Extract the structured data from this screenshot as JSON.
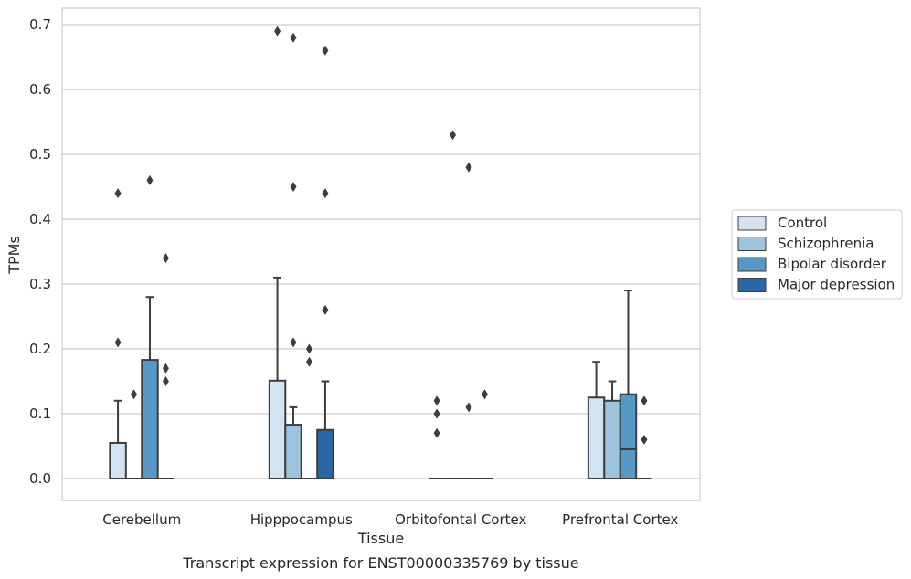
{
  "caption": "Transcript expression for ENST00000335769 by tissue",
  "chart_data": {
    "type": "boxplot",
    "xlabel": "Tissue",
    "ylabel": "TPMs",
    "ylim": [
      -0.035,
      0.725
    ],
    "yticks": [
      0.0,
      0.1,
      0.2,
      0.3,
      0.4,
      0.5,
      0.6,
      0.7
    ],
    "ytick_labels": [
      "0.0",
      "0.1",
      "0.2",
      "0.3",
      "0.4",
      "0.5",
      "0.6",
      "0.7"
    ],
    "grid": "horizontal",
    "legend_position": "right",
    "categories": [
      "Cerebellum",
      "Hipppocampus",
      "Orbitofontal Cortex",
      "Prefrontal Cortex"
    ],
    "series": [
      {
        "name": "Control",
        "color": "#d4e3f1",
        "boxes": [
          {
            "q1": 0.0,
            "median": 0.0,
            "q3": 0.055,
            "whisker_low": 0.0,
            "whisker_high": 0.12,
            "outliers": [
              0.44,
              0.21
            ]
          },
          {
            "q1": 0.0,
            "median": 0.0,
            "q3": 0.151,
            "whisker_low": 0.0,
            "whisker_high": 0.31,
            "outliers": [
              0.69
            ]
          },
          {
            "q1": 0.0,
            "median": 0.0,
            "q3": 0.0,
            "whisker_low": 0.0,
            "whisker_high": 0.0,
            "outliers": [
              0.12,
              0.1,
              0.07
            ]
          },
          {
            "q1": 0.0,
            "median": 0.0,
            "q3": 0.125,
            "whisker_low": 0.0,
            "whisker_high": 0.18,
            "outliers": []
          }
        ]
      },
      {
        "name": "Schizophrenia",
        "color": "#9dc4dd",
        "boxes": [
          {
            "q1": 0.0,
            "median": 0.0,
            "q3": 0.0,
            "whisker_low": 0.0,
            "whisker_high": 0.0,
            "outliers": [
              0.13
            ]
          },
          {
            "q1": 0.0,
            "median": 0.0,
            "q3": 0.083,
            "whisker_low": 0.0,
            "whisker_high": 0.11,
            "outliers": [
              0.68,
              0.45,
              0.21
            ]
          },
          {
            "q1": 0.0,
            "median": 0.0,
            "q3": 0.0,
            "whisker_low": 0.0,
            "whisker_high": 0.0,
            "outliers": [
              0.53
            ]
          },
          {
            "q1": 0.0,
            "median": 0.0,
            "q3": 0.12,
            "whisker_low": 0.0,
            "whisker_high": 0.15,
            "outliers": []
          }
        ]
      },
      {
        "name": "Bipolar disorder",
        "color": "#5698c6",
        "boxes": [
          {
            "q1": 0.0,
            "median": 0.0,
            "q3": 0.183,
            "whisker_low": 0.0,
            "whisker_high": 0.28,
            "outliers": [
              0.46
            ]
          },
          {
            "q1": 0.0,
            "median": 0.0,
            "q3": 0.0,
            "whisker_low": 0.0,
            "whisker_high": 0.0,
            "outliers": [
              0.2,
              0.18
            ]
          },
          {
            "q1": 0.0,
            "median": 0.0,
            "q3": 0.0,
            "whisker_low": 0.0,
            "whisker_high": 0.0,
            "outliers": [
              0.48,
              0.11
            ]
          },
          {
            "q1": 0.0,
            "median": 0.045,
            "q3": 0.13,
            "whisker_low": 0.0,
            "whisker_high": 0.29,
            "outliers": []
          }
        ]
      },
      {
        "name": "Major depression",
        "color": "#2a67a6",
        "boxes": [
          {
            "q1": 0.0,
            "median": 0.0,
            "q3": 0.0,
            "whisker_low": 0.0,
            "whisker_high": 0.0,
            "outliers": [
              0.34,
              0.17,
              0.15
            ]
          },
          {
            "q1": 0.0,
            "median": 0.0,
            "q3": 0.075,
            "whisker_low": 0.0,
            "whisker_high": 0.15,
            "outliers": [
              0.66,
              0.44,
              0.26
            ]
          },
          {
            "q1": 0.0,
            "median": 0.0,
            "q3": 0.0,
            "whisker_low": 0.0,
            "whisker_high": 0.0,
            "outliers": [
              0.13
            ]
          },
          {
            "q1": 0.0,
            "median": 0.0,
            "q3": 0.0,
            "whisker_low": 0.0,
            "whisker_high": 0.0,
            "outliers": [
              0.12,
              0.06
            ]
          }
        ]
      }
    ]
  }
}
